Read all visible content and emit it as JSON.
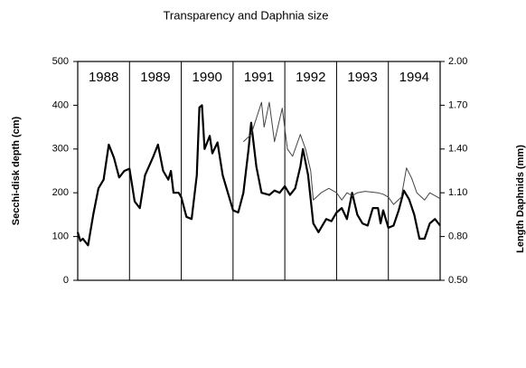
{
  "chart_data": {
    "type": "line",
    "title": "Transparency and Daphnia size",
    "y_label": "Secchi-disk depth (cm)",
    "y2_label": "Length Daphnids (mm)",
    "year_labels": [
      "1988",
      "1989",
      "1990",
      "1991",
      "1992",
      "1993",
      "1994"
    ],
    "xlim": [
      1988,
      1995
    ],
    "xticks": [
      1989,
      1990,
      1991,
      1992,
      1993,
      1994
    ],
    "ylim": [
      0,
      500
    ],
    "yticks": [
      0,
      100,
      200,
      300,
      400,
      500
    ],
    "y2lim": [
      0.5,
      2.0
    ],
    "y2ticks": [
      {
        "value": 0.5,
        "label": "0.50"
      },
      {
        "value": 0.8,
        "label": "0.80"
      },
      {
        "value": 1.1,
        "label": "1.10"
      },
      {
        "value": 1.4,
        "label": "1.40"
      },
      {
        "value": 1.7,
        "label": "1.70"
      },
      {
        "value": 2.0,
        "label": "2.00"
      }
    ],
    "series": [
      {
        "color": "#000000",
        "width": 2.2,
        "x": [
          1988.0,
          1988.05,
          1988.1,
          1988.2,
          1988.3,
          1988.4,
          1988.5,
          1988.6,
          1988.7,
          1988.8,
          1988.9,
          1989.0,
          1989.1,
          1989.2,
          1989.3,
          1989.45,
          1989.55,
          1989.65,
          1989.75,
          1989.8,
          1989.85,
          1989.95,
          1990.0,
          1990.1,
          1990.2,
          1990.3,
          1990.35,
          1990.4,
          1990.45,
          1990.55,
          1990.6,
          1990.7,
          1990.8,
          1990.9,
          1991.0,
          1991.1,
          1991.2,
          1991.3,
          1991.35,
          1991.45,
          1991.55,
          1991.7,
          1991.8,
          1991.9,
          1992.0,
          1992.1,
          1992.2,
          1992.3,
          1992.35,
          1992.45,
          1992.55,
          1992.65,
          1992.8,
          1992.9,
          1993.0,
          1993.1,
          1993.2,
          1993.3,
          1993.4,
          1993.5,
          1993.6,
          1993.7,
          1993.8,
          1993.85,
          1993.9,
          1994.0,
          1994.1,
          1994.2,
          1994.3,
          1994.4,
          1994.5,
          1994.6,
          1994.7,
          1994.8,
          1994.9,
          1995.0
        ],
        "values": [
          110,
          90,
          95,
          80,
          150,
          210,
          230,
          310,
          280,
          235,
          250,
          255,
          180,
          165,
          240,
          280,
          310,
          250,
          230,
          250,
          200,
          200,
          190,
          145,
          140,
          240,
          395,
          400,
          300,
          330,
          290,
          315,
          240,
          200,
          160,
          155,
          200,
          300,
          360,
          260,
          200,
          195,
          205,
          200,
          215,
          195,
          210,
          260,
          300,
          240,
          130,
          110,
          140,
          135,
          155,
          165,
          140,
          200,
          150,
          130,
          125,
          165,
          165,
          130,
          160,
          120,
          125,
          160,
          205,
          185,
          150,
          95,
          95,
          130,
          140,
          125
        ]
      },
      {
        "color": "#444444",
        "width": 1,
        "axis": "y2",
        "x": [
          1991.2,
          1991.35,
          1991.55,
          1991.6,
          1991.7,
          1991.8,
          1991.95,
          1992.05,
          1992.15,
          1992.3,
          1992.4,
          1992.5,
          1992.55,
          1992.7,
          1992.85,
          1993.0,
          1993.1,
          1993.2,
          1993.3,
          1993.4,
          1993.55,
          1993.8,
          1993.9,
          1994.0,
          1994.1,
          1994.25,
          1994.35,
          1994.45,
          1994.55,
          1994.7,
          1994.8,
          1994.9,
          1995.0
        ],
        "values": [
          1.45,
          1.5,
          1.72,
          1.55,
          1.72,
          1.45,
          1.68,
          1.4,
          1.35,
          1.5,
          1.4,
          1.25,
          1.05,
          1.1,
          1.13,
          1.1,
          1.05,
          1.1,
          1.08,
          1.1,
          1.11,
          1.1,
          1.09,
          1.07,
          1.02,
          1.07,
          1.27,
          1.2,
          1.1,
          1.05,
          1.1,
          1.08,
          1.06
        ]
      }
    ]
  }
}
